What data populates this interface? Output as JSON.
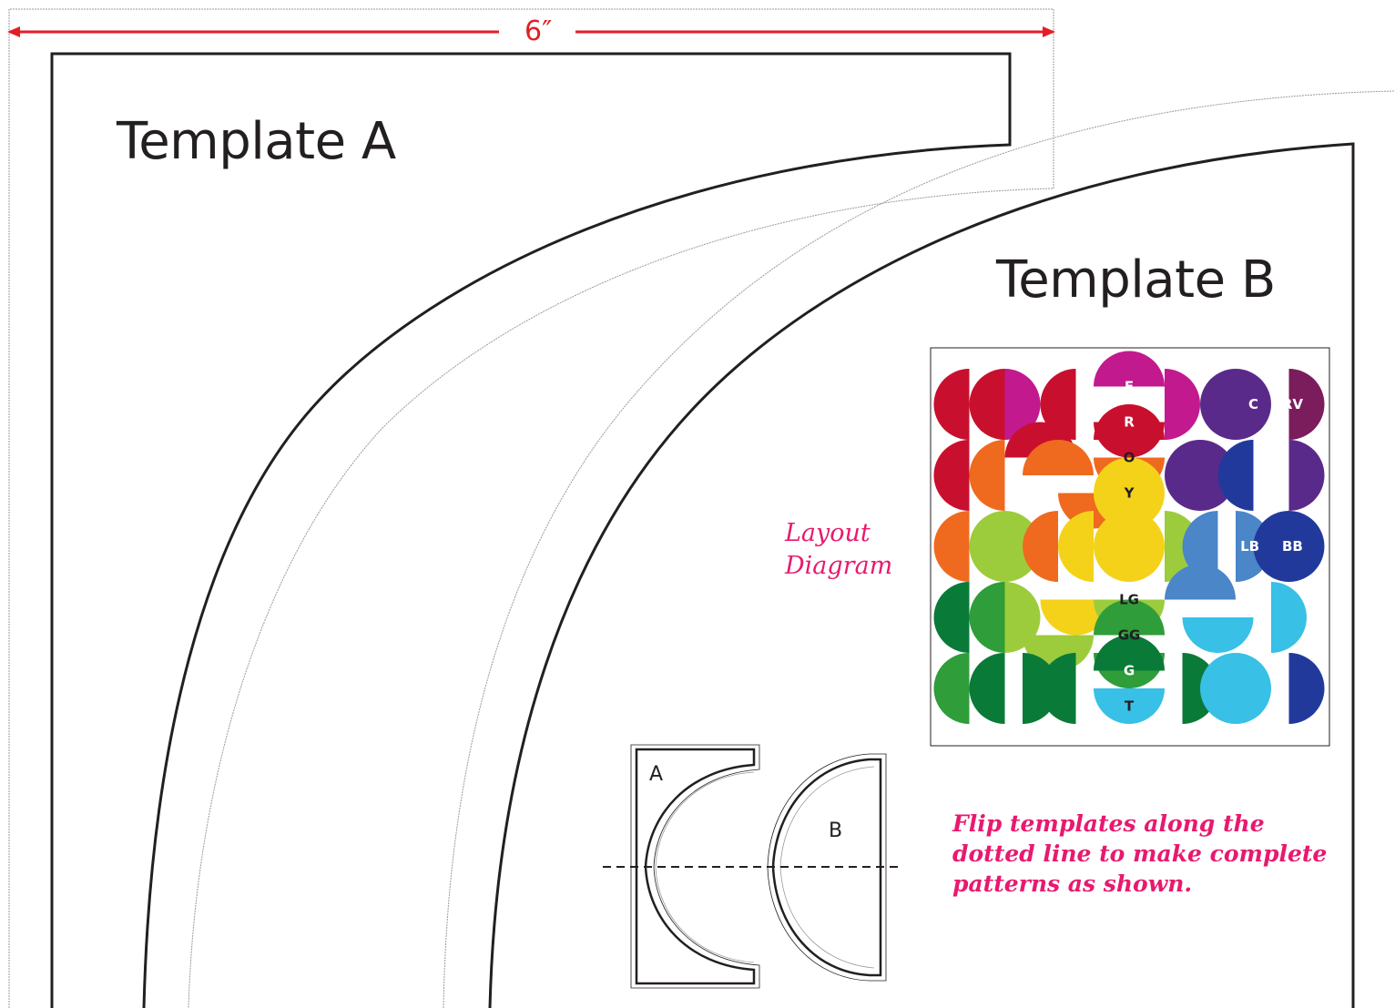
{
  "dimension": {
    "label": "6″",
    "color": "#e41e26"
  },
  "template_a": {
    "title": "Template A"
  },
  "template_b": {
    "title": "Template B"
  },
  "layout_diagram": {
    "label_line1": "Layout",
    "label_line2": "Diagram",
    "label_color": "#e8196f",
    "color_key": [
      {
        "code": "F",
        "color": "#c2198e"
      },
      {
        "code": "R",
        "color": "#c8102e"
      },
      {
        "code": "O",
        "color": "#ef6a1f"
      },
      {
        "code": "Y",
        "color": "#f4d21a"
      },
      {
        "code": "LG",
        "color": "#9ccc3c"
      },
      {
        "code": "GG",
        "color": "#2f9d3a"
      },
      {
        "code": "G",
        "color": "#0a7a38"
      },
      {
        "code": "T",
        "color": "#38c0e6"
      },
      {
        "code": "LB",
        "color": "#4a86c8"
      },
      {
        "code": "BB",
        "color": "#22399c"
      },
      {
        "code": "C",
        "color": "#5a2a8a"
      },
      {
        "code": "RV",
        "color": "#7b1c5c"
      }
    ]
  },
  "flip_diagram": {
    "piece_a_label": "A",
    "piece_b_label": "B"
  },
  "instructions": {
    "line1": "Flip templates along the",
    "line2": "dotted line to make complete",
    "line3": "patterns as shown."
  }
}
